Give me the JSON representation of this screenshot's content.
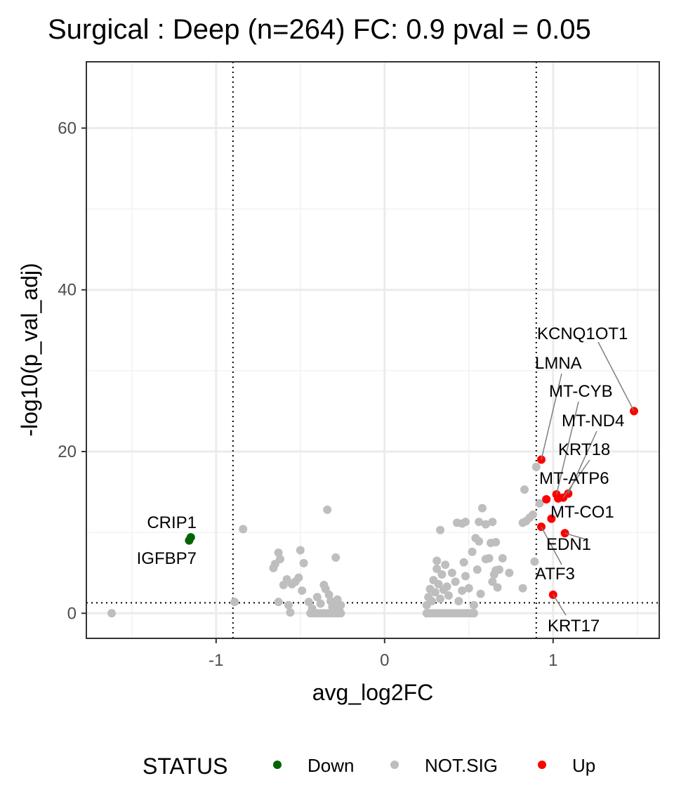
{
  "chart_data": {
    "type": "scatter",
    "title": "Surgical : Deep (n=264) FC: 0.9 pval = 0.05",
    "xlabel": "avg_log2FC",
    "ylabel": "-log10(p_val_adj)",
    "xlim": [
      -1.77,
      1.63
    ],
    "ylim": [
      -3.1,
      68.2
    ],
    "x_ticks": [
      -1,
      0,
      1
    ],
    "x_tick_labels": [
      "-1",
      "0",
      "1"
    ],
    "y_ticks": [
      0,
      20,
      40,
      60
    ],
    "y_tick_labels": [
      "0",
      "20",
      "40",
      "60"
    ],
    "grid": true,
    "thresholds": {
      "fc": 0.9,
      "neg_log10_pval": 1.3
    },
    "legend": {
      "title": "STATUS",
      "position": "bottom",
      "entries": [
        {
          "label": "Down",
          "color": "#006400"
        },
        {
          "label": "NOT.SIG",
          "color": "#bebebe"
        },
        {
          "label": "Up",
          "color": "#ff0000"
        }
      ]
    },
    "series": [
      {
        "name": "Down",
        "color": "#006400",
        "points": [
          {
            "x": -1.16,
            "y": 9.0,
            "label": "IGFBP7"
          },
          {
            "x": -1.15,
            "y": 9.4,
            "label": "CRIP1"
          }
        ]
      },
      {
        "name": "Up",
        "color": "#ff0000",
        "points": [
          {
            "x": 1.48,
            "y": 25.0,
            "label": "KCNQ1OT1"
          },
          {
            "x": 0.93,
            "y": 19.0,
            "label": "LMNA"
          },
          {
            "x": 1.02,
            "y": 14.7,
            "label": "MT-CYB"
          },
          {
            "x": 1.09,
            "y": 14.8,
            "label": "MT-ND4"
          },
          {
            "x": 1.06,
            "y": 14.3,
            "label": "KRT18"
          },
          {
            "x": 1.03,
            "y": 14.2,
            "label": "MT-ATP6"
          },
          {
            "x": 0.96,
            "y": 14.1,
            "label": ""
          },
          {
            "x": 0.99,
            "y": 11.7,
            "label": "MT-CO1"
          },
          {
            "x": 0.93,
            "y": 10.7,
            "label": "ATF3"
          },
          {
            "x": 1.07,
            "y": 9.9,
            "label": "EDN1"
          },
          {
            "x": 1.0,
            "y": 2.3,
            "label": "KRT17"
          }
        ]
      },
      {
        "name": "NOT.SIG",
        "color": "#bebebe",
        "points": [
          {
            "x": -1.62,
            "y": 0.0
          },
          {
            "x": -0.89,
            "y": 1.4
          },
          {
            "x": -0.84,
            "y": 10.4
          },
          {
            "x": -0.66,
            "y": 5.6
          },
          {
            "x": -0.65,
            "y": 6.1
          },
          {
            "x": -0.63,
            "y": 7.5
          },
          {
            "x": -0.62,
            "y": 6.7
          },
          {
            "x": -0.6,
            "y": 3.5
          },
          {
            "x": -0.58,
            "y": 4.2
          },
          {
            "x": -0.55,
            "y": 3.6
          },
          {
            "x": -0.53,
            "y": 3.9
          },
          {
            "x": -0.51,
            "y": 4.4
          },
          {
            "x": -0.5,
            "y": 7.8
          },
          {
            "x": -0.49,
            "y": 2.8
          },
          {
            "x": -0.48,
            "y": 6.2
          },
          {
            "x": -0.57,
            "y": 1.0
          },
          {
            "x": -0.56,
            "y": 0.1
          },
          {
            "x": -0.63,
            "y": 1.4
          },
          {
            "x": -0.45,
            "y": 1.4
          },
          {
            "x": -0.43,
            "y": 0.6
          },
          {
            "x": -0.4,
            "y": 2.0
          },
          {
            "x": -0.38,
            "y": 1.2
          },
          {
            "x": -0.36,
            "y": 3.5
          },
          {
            "x": -0.35,
            "y": 3.0
          },
          {
            "x": -0.33,
            "y": 2.3
          },
          {
            "x": -0.32,
            "y": 1.5
          },
          {
            "x": -0.31,
            "y": 0.8
          },
          {
            "x": -0.3,
            "y": 1.2
          },
          {
            "x": -0.29,
            "y": 0.3
          },
          {
            "x": -0.28,
            "y": 1.7
          },
          {
            "x": -0.27,
            "y": 0.5
          },
          {
            "x": -0.26,
            "y": 1.0
          },
          {
            "x": -0.34,
            "y": 12.8
          },
          {
            "x": -0.29,
            "y": 6.9
          },
          {
            "x": -0.44,
            "y": 0.0
          },
          {
            "x": -0.42,
            "y": 0.0
          },
          {
            "x": -0.4,
            "y": 0.0
          },
          {
            "x": -0.38,
            "y": 0.0
          },
          {
            "x": -0.36,
            "y": 0.0
          },
          {
            "x": -0.34,
            "y": 0.0
          },
          {
            "x": -0.32,
            "y": 0.0
          },
          {
            "x": -0.3,
            "y": 0.0
          },
          {
            "x": -0.28,
            "y": 0.0
          },
          {
            "x": -0.26,
            "y": 0.0
          },
          {
            "x": 0.25,
            "y": 0.0
          },
          {
            "x": 0.27,
            "y": 0.0
          },
          {
            "x": 0.29,
            "y": 0.0
          },
          {
            "x": 0.31,
            "y": 0.0
          },
          {
            "x": 0.33,
            "y": 0.0
          },
          {
            "x": 0.35,
            "y": 0.0
          },
          {
            "x": 0.37,
            "y": 0.0
          },
          {
            "x": 0.39,
            "y": 0.0
          },
          {
            "x": 0.41,
            "y": 0.0
          },
          {
            "x": 0.43,
            "y": 0.0
          },
          {
            "x": 0.45,
            "y": 0.0
          },
          {
            "x": 0.47,
            "y": 0.0
          },
          {
            "x": 0.49,
            "y": 0.0
          },
          {
            "x": 0.51,
            "y": 0.0
          },
          {
            "x": 0.53,
            "y": 0.0
          },
          {
            "x": 0.25,
            "y": 1.0
          },
          {
            "x": 0.26,
            "y": 2.0
          },
          {
            "x": 0.27,
            "y": 3.0
          },
          {
            "x": 0.28,
            "y": 1.5
          },
          {
            "x": 0.29,
            "y": 4.1
          },
          {
            "x": 0.3,
            "y": 2.6
          },
          {
            "x": 0.31,
            "y": 5.5
          },
          {
            "x": 0.32,
            "y": 3.6
          },
          {
            "x": 0.33,
            "y": 1.8
          },
          {
            "x": 0.34,
            "y": 4.8
          },
          {
            "x": 0.35,
            "y": 2.9
          },
          {
            "x": 0.36,
            "y": 6.0
          },
          {
            "x": 0.37,
            "y": 3.3
          },
          {
            "x": 0.38,
            "y": 2.2
          },
          {
            "x": 0.4,
            "y": 5.0
          },
          {
            "x": 0.42,
            "y": 3.9
          },
          {
            "x": 0.44,
            "y": 1.5
          },
          {
            "x": 0.46,
            "y": 2.8
          },
          {
            "x": 0.47,
            "y": 6.3
          },
          {
            "x": 0.48,
            "y": 4.6
          },
          {
            "x": 0.5,
            "y": 3.1
          },
          {
            "x": 0.52,
            "y": 7.6
          },
          {
            "x": 0.53,
            "y": 1.0
          },
          {
            "x": 0.55,
            "y": 5.4
          },
          {
            "x": 0.57,
            "y": 2.4
          },
          {
            "x": 0.31,
            "y": 6.5
          },
          {
            "x": 0.33,
            "y": 10.3
          },
          {
            "x": 0.43,
            "y": 11.2
          },
          {
            "x": 0.46,
            "y": 11.1
          },
          {
            "x": 0.48,
            "y": 11.3
          },
          {
            "x": 0.54,
            "y": 9.3
          },
          {
            "x": 0.56,
            "y": 8.9
          },
          {
            "x": 0.56,
            "y": 11.3
          },
          {
            "x": 0.58,
            "y": 13.0
          },
          {
            "x": 0.6,
            "y": 11.0
          },
          {
            "x": 0.63,
            "y": 8.7
          },
          {
            "x": 0.64,
            "y": 11.3
          },
          {
            "x": 0.66,
            "y": 8.8
          },
          {
            "x": 0.6,
            "y": 6.7
          },
          {
            "x": 0.62,
            "y": 6.8
          },
          {
            "x": 0.65,
            "y": 4.8
          },
          {
            "x": 0.66,
            "y": 5.3
          },
          {
            "x": 0.68,
            "y": 5.4
          },
          {
            "x": 0.7,
            "y": 6.8
          },
          {
            "x": 0.64,
            "y": 3.9
          },
          {
            "x": 0.67,
            "y": 3.2
          },
          {
            "x": 0.74,
            "y": 5.0
          },
          {
            "x": 0.82,
            "y": 11.2
          },
          {
            "x": 0.84,
            "y": 11.4
          },
          {
            "x": 0.86,
            "y": 11.8
          },
          {
            "x": 0.82,
            "y": 3.1
          },
          {
            "x": 0.88,
            "y": 12.2
          },
          {
            "x": 0.9,
            "y": 18.1
          },
          {
            "x": 0.92,
            "y": 13.6
          },
          {
            "x": 0.83,
            "y": 15.3
          },
          {
            "x": 0.89,
            "y": 6.4
          }
        ]
      }
    ]
  }
}
